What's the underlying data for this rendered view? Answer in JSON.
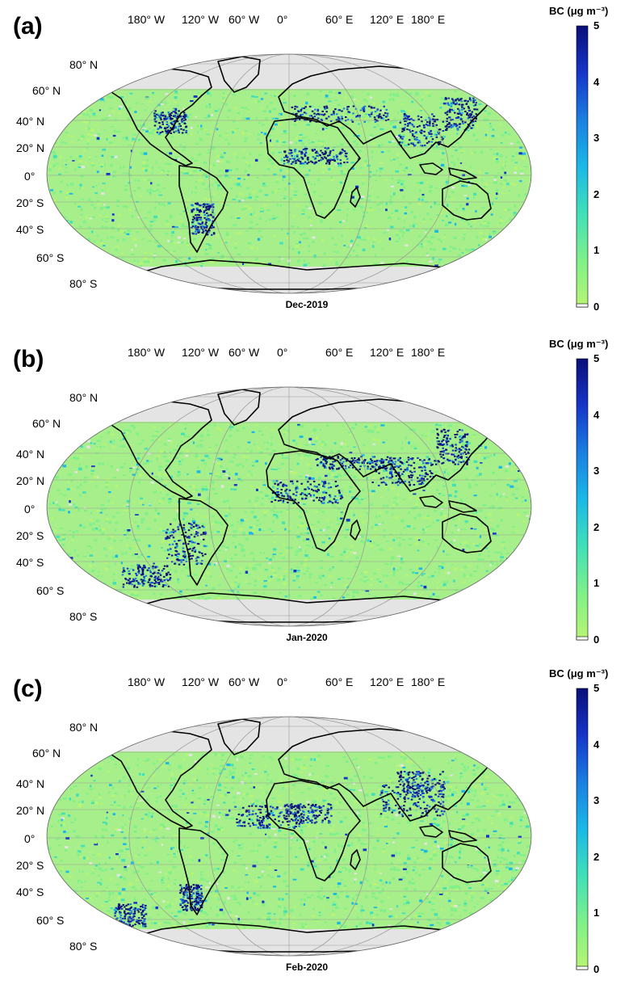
{
  "figure": {
    "colorbar": {
      "title": "BC (μg m⁻³)",
      "ticks": [
        "0",
        "1",
        "2",
        "3",
        "4",
        "5"
      ],
      "range": [
        0,
        5
      ],
      "colors": [
        "#b8f573",
        "#7ff08a",
        "#40e0b8",
        "#1ab8e6",
        "#1b7fe0",
        "#1535c8",
        "#0a0f78"
      ]
    },
    "lon_labels": [
      "180° W",
      "120° W",
      "60° W",
      "0°",
      "60° E",
      "120° E",
      "180° E"
    ],
    "lat_labels": [
      "80° N",
      "60° N",
      "40° N",
      "20° N",
      "0°",
      "20° S",
      "40° S",
      "60° S",
      "80° S"
    ],
    "colors": {
      "ocean_fill": "#a6ef8a",
      "missing": "#e4e4e4",
      "coast": "#000000",
      "grid": "#9a9a9a"
    },
    "panels": [
      {
        "label": "(a)",
        "month": "Dec-2019"
      },
      {
        "label": "(b)",
        "month": "Jan-2020"
      },
      {
        "label": "(c)",
        "month": "Feb-2020"
      }
    ]
  }
}
